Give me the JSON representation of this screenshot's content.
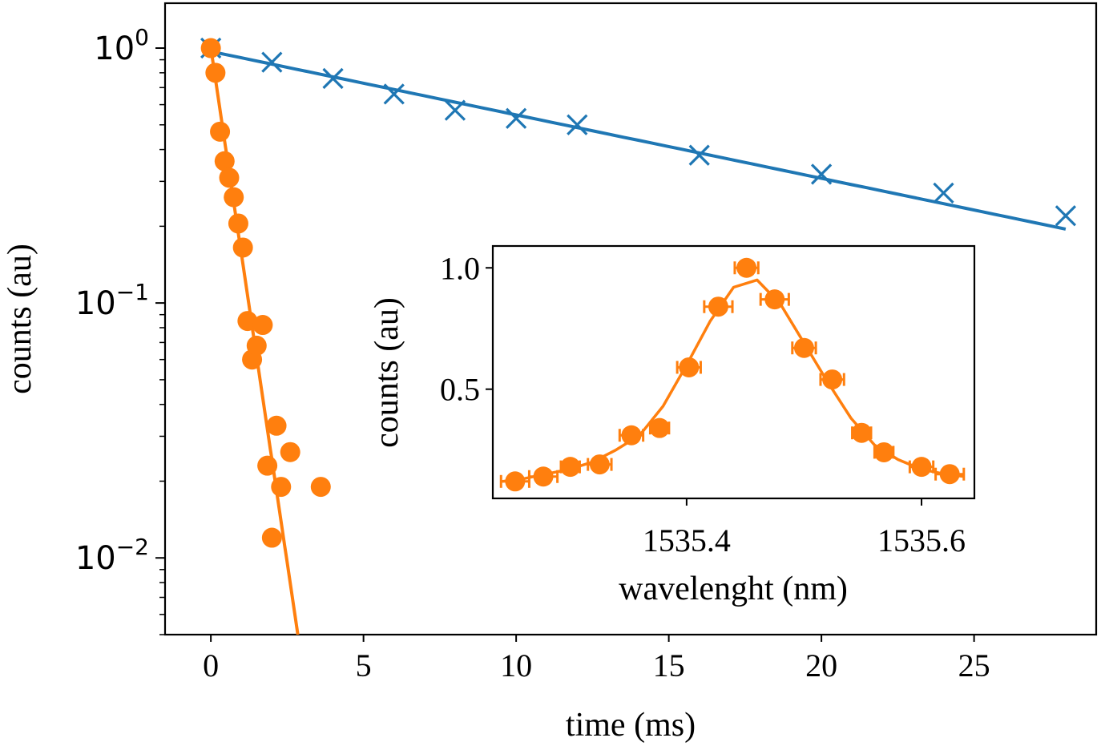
{
  "chart_data": [
    {
      "type": "scatter",
      "title": "",
      "xlabel": "time (ms)",
      "ylabel": "counts (au)",
      "xlim": [
        -1.5,
        29
      ],
      "ylim": [
        0.005,
        1.5
      ],
      "yscale": "log",
      "xticks": [
        0,
        5,
        10,
        15,
        20,
        25
      ],
      "xtick_labels": [
        "0",
        "5",
        "10",
        "15",
        "20",
        "25"
      ],
      "yticks": [
        1,
        0.1,
        0.01
      ],
      "ytick_labels": [
        {
          "base": "10",
          "exp": "0"
        },
        {
          "base": "10",
          "exp": "−1"
        },
        {
          "base": "10",
          "exp": "−2"
        }
      ],
      "grid": false,
      "series": [
        {
          "marker": "x",
          "color": "#1f77b4",
          "x": [
            0,
            2,
            4,
            6,
            8,
            10,
            12,
            16,
            20,
            24,
            28
          ],
          "y": [
            1.0,
            0.88,
            0.76,
            0.66,
            0.57,
            0.53,
            0.5,
            0.38,
            0.32,
            0.27,
            0.22
          ],
          "fit": {
            "model": "exponential",
            "x": [
              0,
              28
            ],
            "y": [
              0.97,
              0.195
            ]
          }
        },
        {
          "marker": "circle",
          "color": "#ff7f0e",
          "x": [
            0,
            0.15,
            0.3,
            0.45,
            0.6,
            0.75,
            0.9,
            1.05,
            1.2,
            1.35,
            1.5,
            1.7,
            1.85,
            2.0,
            2.15,
            2.3,
            2.6,
            3.6
          ],
          "y": [
            1.0,
            0.8,
            0.47,
            0.36,
            0.31,
            0.26,
            0.205,
            0.165,
            0.085,
            0.06,
            0.068,
            0.082,
            0.023,
            0.012,
            0.033,
            0.019,
            0.026,
            0.019
          ],
          "fit": {
            "model": "exponential",
            "x": [
              0,
              2.85
            ],
            "y": [
              1.0,
              0.005
            ]
          }
        }
      ]
    },
    {
      "type": "scatter",
      "title": "",
      "xlabel": "wavelenght (nm)",
      "ylabel": "counts (au)",
      "xlim": [
        1535.235,
        1535.645
      ],
      "ylim": [
        0.05,
        1.09
      ],
      "xticks": [
        1535.4,
        1535.6
      ],
      "xtick_labels": [
        "1535.4",
        "1535.6"
      ],
      "yticks": [
        0.5,
        1.0
      ],
      "ytick_labels": [
        "0.5",
        "1.0"
      ],
      "grid": false,
      "series": [
        {
          "marker": "circle",
          "color": "#ff7f0e",
          "errorbars": "x",
          "x": [
            1535.254,
            1535.278,
            1535.301,
            1535.326,
            1535.353,
            1535.377,
            1535.402,
            1535.427,
            1535.451,
            1535.475,
            1535.5,
            1535.524,
            1535.549,
            1535.568,
            1535.6,
            1535.624
          ],
          "y": [
            0.12,
            0.14,
            0.18,
            0.19,
            0.31,
            0.34,
            0.59,
            0.84,
            1.0,
            0.87,
            0.67,
            0.54,
            0.32,
            0.24,
            0.18,
            0.15
          ],
          "xerr": [
            0.012,
            0.012,
            0.008,
            0.01,
            0.01,
            0.008,
            0.01,
            0.012,
            0.01,
            0.012,
            0.01,
            0.01,
            0.008,
            0.008,
            0.01,
            0.012
          ],
          "fit": {
            "model": "gaussian+baseline",
            "x": [
              1535.243,
              1535.26,
              1535.28,
              1535.3,
              1535.32,
              1535.34,
              1535.36,
              1535.38,
              1535.4,
              1535.42,
              1535.44,
              1535.46,
              1535.48,
              1535.5,
              1535.52,
              1535.54,
              1535.56,
              1535.58,
              1535.6,
              1535.62,
              1535.636
            ],
            "y": [
              0.12,
              0.13,
              0.15,
              0.17,
              0.2,
              0.25,
              0.31,
              0.43,
              0.6,
              0.78,
              0.92,
              0.95,
              0.85,
              0.69,
              0.53,
              0.38,
              0.27,
              0.21,
              0.17,
              0.15,
              0.14
            ]
          }
        }
      ]
    }
  ]
}
